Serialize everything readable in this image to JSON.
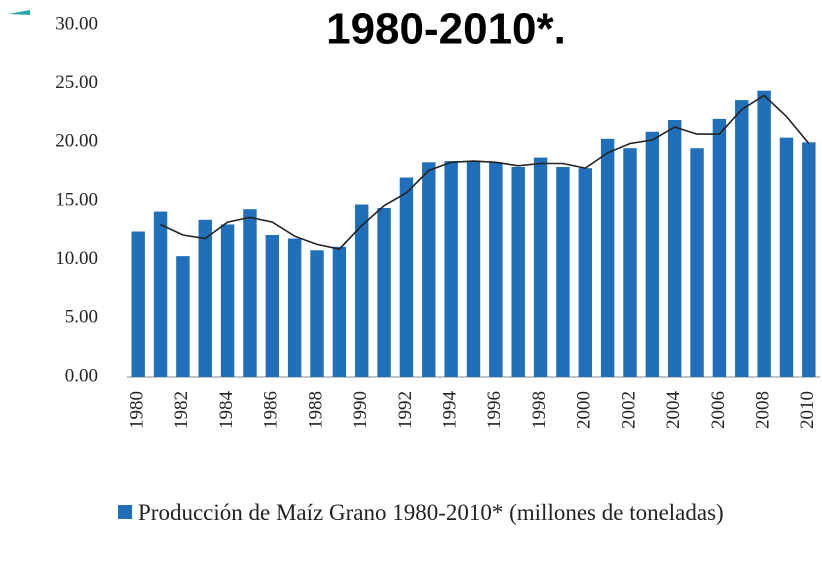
{
  "chart_data": {
    "type": "bar",
    "title": "1980-2010*.",
    "categories": [
      "1980",
      null,
      "1982",
      null,
      "1984",
      null,
      "1986",
      null,
      "1988",
      null,
      "1990",
      null,
      "1992",
      null,
      "1994",
      null,
      "1996",
      null,
      "1998",
      null,
      "2000",
      null,
      "2002",
      null,
      "2004",
      null,
      "2006",
      null,
      "2008",
      null,
      "2010"
    ],
    "series": [
      {
        "name": "Producción de Maíz Grano 1980-2010* (millones de toneladas)",
        "type": "bar",
        "color": "#1f6fba",
        "values": [
          12.4,
          14.1,
          10.3,
          13.4,
          13.0,
          14.3,
          12.1,
          11.8,
          10.8,
          11.1,
          14.7,
          14.4,
          17.0,
          18.3,
          18.4,
          18.4,
          18.3,
          17.9,
          18.7,
          17.9,
          17.8,
          20.3,
          19.5,
          20.9,
          21.9,
          19.5,
          22.0,
          23.6,
          24.4,
          20.4,
          20.0
        ]
      },
      {
        "type": "line",
        "color": "#222222",
        "values": [
          null,
          13.0,
          12.1,
          11.8,
          13.2,
          13.6,
          13.2,
          12.0,
          11.3,
          10.9,
          12.9,
          14.6,
          15.7,
          17.6,
          18.3,
          18.4,
          18.3,
          18.0,
          18.2,
          18.2,
          17.8,
          19.1,
          19.9,
          20.2,
          21.3,
          20.7,
          20.7,
          22.8,
          24.0,
          22.2,
          19.9
        ]
      }
    ],
    "ylim": [
      0,
      30
    ],
    "yticks": [
      {
        "value": 0,
        "label": "0.00"
      },
      {
        "value": 5,
        "label": "5.00"
      },
      {
        "value": 10,
        "label": "10.00"
      },
      {
        "value": 15,
        "label": "15.00"
      },
      {
        "value": 20,
        "label": "20.00"
      },
      {
        "value": 25,
        "label": "25.00"
      },
      {
        "value": 30,
        "label": "30.00"
      }
    ],
    "grid": false
  }
}
